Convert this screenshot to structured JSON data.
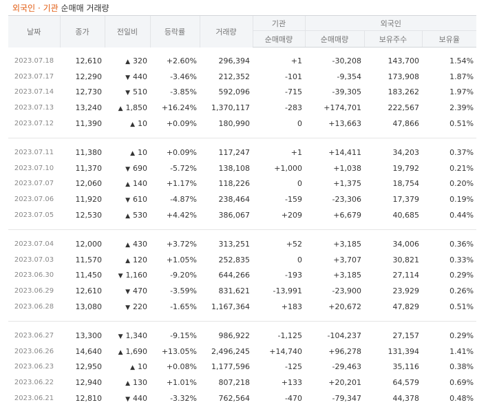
{
  "header": {
    "tab_foreign": "외국인",
    "separator": "·",
    "tab_inst": "기관",
    "suffix": "순매매 거래량"
  },
  "columns": {
    "date": "날짜",
    "close": "종가",
    "change": "전일비",
    "rate": "등락률",
    "volume": "거래량",
    "inst_group": "기관",
    "inst_net": "순매매량",
    "foreign_group": "외국인",
    "foreign_net": "순매매량",
    "holdings": "보유주수",
    "holding_rate": "보유율"
  },
  "colors": {
    "up": "#d62020",
    "down": "#1a6fd1",
    "accent": "#e15b10"
  },
  "groups": [
    [
      {
        "date": "2023.07.18",
        "close": "12,610",
        "dir": "up",
        "change": "320",
        "rate": "+2.60%",
        "volume": "296,394",
        "inst": "+1",
        "foreign": "-30,208",
        "holdings": "143,700",
        "ratio": "1.54%"
      },
      {
        "date": "2023.07.17",
        "close": "12,290",
        "dir": "down",
        "change": "440",
        "rate": "-3.46%",
        "volume": "212,352",
        "inst": "-101",
        "foreign": "-9,354",
        "holdings": "173,908",
        "ratio": "1.87%"
      },
      {
        "date": "2023.07.14",
        "close": "12,730",
        "dir": "down",
        "change": "510",
        "rate": "-3.85%",
        "volume": "592,096",
        "inst": "-715",
        "foreign": "-39,305",
        "holdings": "183,262",
        "ratio": "1.97%"
      },
      {
        "date": "2023.07.13",
        "close": "13,240",
        "dir": "up",
        "change": "1,850",
        "rate": "+16.24%",
        "volume": "1,370,117",
        "inst": "-283",
        "foreign": "+174,701",
        "holdings": "222,567",
        "ratio": "2.39%"
      },
      {
        "date": "2023.07.12",
        "close": "11,390",
        "dir": "up",
        "change": "10",
        "rate": "+0.09%",
        "volume": "180,990",
        "inst": "0",
        "foreign": "+13,663",
        "holdings": "47,866",
        "ratio": "0.51%"
      }
    ],
    [
      {
        "date": "2023.07.11",
        "close": "11,380",
        "dir": "up",
        "change": "10",
        "rate": "+0.09%",
        "volume": "117,247",
        "inst": "+1",
        "foreign": "+14,411",
        "holdings": "34,203",
        "ratio": "0.37%"
      },
      {
        "date": "2023.07.10",
        "close": "11,370",
        "dir": "down",
        "change": "690",
        "rate": "-5.72%",
        "volume": "138,108",
        "inst": "+1,000",
        "foreign": "+1,038",
        "holdings": "19,792",
        "ratio": "0.21%"
      },
      {
        "date": "2023.07.07",
        "close": "12,060",
        "dir": "up",
        "change": "140",
        "rate": "+1.17%",
        "volume": "118,226",
        "inst": "0",
        "foreign": "+1,375",
        "holdings": "18,754",
        "ratio": "0.20%"
      },
      {
        "date": "2023.07.06",
        "close": "11,920",
        "dir": "down",
        "change": "610",
        "rate": "-4.87%",
        "volume": "238,464",
        "inst": "-159",
        "foreign": "-23,306",
        "holdings": "17,379",
        "ratio": "0.19%"
      },
      {
        "date": "2023.07.05",
        "close": "12,530",
        "dir": "up",
        "change": "530",
        "rate": "+4.42%",
        "volume": "386,067",
        "inst": "+209",
        "foreign": "+6,679",
        "holdings": "40,685",
        "ratio": "0.44%"
      }
    ],
    [
      {
        "date": "2023.07.04",
        "close": "12,000",
        "dir": "up",
        "change": "430",
        "rate": "+3.72%",
        "volume": "313,251",
        "inst": "+52",
        "foreign": "+3,185",
        "holdings": "34,006",
        "ratio": "0.36%"
      },
      {
        "date": "2023.07.03",
        "close": "11,570",
        "dir": "up",
        "change": "120",
        "rate": "+1.05%",
        "volume": "252,835",
        "inst": "0",
        "foreign": "+3,707",
        "holdings": "30,821",
        "ratio": "0.33%"
      },
      {
        "date": "2023.06.30",
        "close": "11,450",
        "dir": "down",
        "change": "1,160",
        "rate": "-9.20%",
        "volume": "644,266",
        "inst": "-193",
        "foreign": "+3,185",
        "holdings": "27,114",
        "ratio": "0.29%"
      },
      {
        "date": "2023.06.29",
        "close": "12,610",
        "dir": "down",
        "change": "470",
        "rate": "-3.59%",
        "volume": "831,621",
        "inst": "-13,991",
        "foreign": "-23,900",
        "holdings": "23,929",
        "ratio": "0.26%"
      },
      {
        "date": "2023.06.28",
        "close": "13,080",
        "dir": "down",
        "change": "220",
        "rate": "-1.65%",
        "volume": "1,167,364",
        "inst": "+183",
        "foreign": "+20,672",
        "holdings": "47,829",
        "ratio": "0.51%"
      }
    ],
    [
      {
        "date": "2023.06.27",
        "close": "13,300",
        "dir": "down",
        "change": "1,340",
        "rate": "-9.15%",
        "volume": "986,922",
        "inst": "-1,125",
        "foreign": "-104,237",
        "holdings": "27,157",
        "ratio": "0.29%"
      },
      {
        "date": "2023.06.26",
        "close": "14,640",
        "dir": "up",
        "change": "1,690",
        "rate": "+13.05%",
        "volume": "2,496,245",
        "inst": "+14,740",
        "foreign": "+96,278",
        "holdings": "131,394",
        "ratio": "1.41%"
      },
      {
        "date": "2023.06.23",
        "close": "12,950",
        "dir": "up",
        "change": "10",
        "rate": "+0.08%",
        "volume": "1,177,596",
        "inst": "-125",
        "foreign": "-29,463",
        "holdings": "35,116",
        "ratio": "0.38%"
      },
      {
        "date": "2023.06.22",
        "close": "12,940",
        "dir": "up",
        "change": "130",
        "rate": "+1.01%",
        "volume": "807,218",
        "inst": "+133",
        "foreign": "+20,201",
        "holdings": "64,579",
        "ratio": "0.69%"
      },
      {
        "date": "2023.06.21",
        "close": "12,810",
        "dir": "down",
        "change": "440",
        "rate": "-3.32%",
        "volume": "762,564",
        "inst": "-470",
        "foreign": "-79,347",
        "holdings": "44,378",
        "ratio": "0.48%"
      }
    ]
  ]
}
